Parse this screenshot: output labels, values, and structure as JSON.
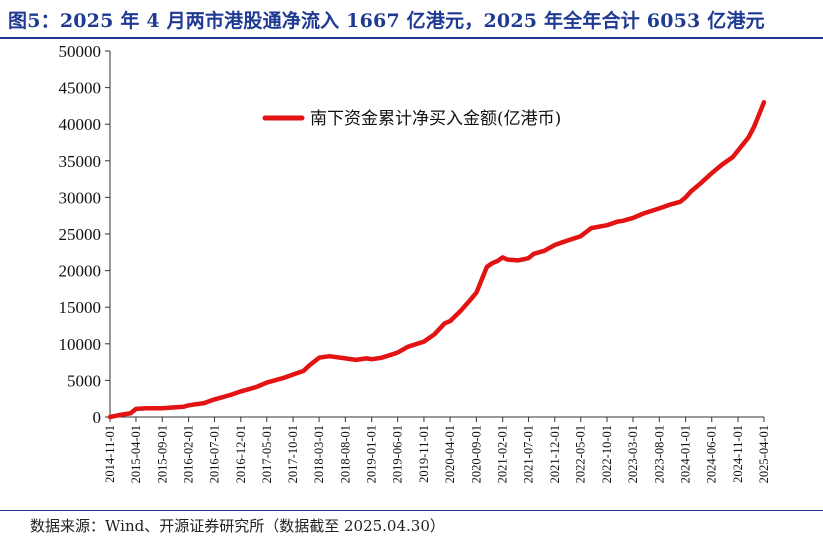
{
  "title": "图5：2025 年 4 月两市港股通净流入 1667 亿港元，2025 年全年合计 6053 亿港元",
  "source": "数据来源：Wind、开源证券研究所（数据截至 2025.04.30）",
  "colors": {
    "title": "#1f3a93",
    "line": "#e31313",
    "axis": "#333333"
  },
  "chart_data": {
    "type": "line",
    "title": "",
    "xlabel": "",
    "ylabel": "",
    "ylim": [
      0,
      50000
    ],
    "yticks": [
      0,
      5000,
      10000,
      15000,
      20000,
      25000,
      30000,
      35000,
      40000,
      45000,
      50000
    ],
    "xlim": [
      "2014-11-01",
      "2025-04-01"
    ],
    "xticks": [
      "2014-11-01",
      "2015-04-01",
      "2015-09-01",
      "2016-02-01",
      "2016-07-01",
      "2016-12-01",
      "2017-05-01",
      "2017-10-01",
      "2018-03-01",
      "2018-08-01",
      "2019-01-01",
      "2019-06-01",
      "2019-11-01",
      "2020-04-01",
      "2020-09-01",
      "2021-02-01",
      "2021-07-01",
      "2021-12-01",
      "2022-05-01",
      "2022-10-01",
      "2023-03-01",
      "2023-08-01",
      "2024-01-01",
      "2024-06-01",
      "2024-11-01",
      "2025-04-01"
    ],
    "grid": false,
    "legend": "top-center",
    "series": [
      {
        "name": "南下资金累计净买入金额(亿港币)",
        "x": [
          "2014-11-01",
          "2015-01-01",
          "2015-03-01",
          "2015-04-01",
          "2015-06-01",
          "2015-09-01",
          "2016-01-01",
          "2016-02-01",
          "2016-05-01",
          "2016-07-01",
          "2016-10-01",
          "2016-12-01",
          "2017-03-01",
          "2017-05-01",
          "2017-08-01",
          "2017-10-01",
          "2017-12-01",
          "2018-01-01",
          "2018-03-01",
          "2018-05-01",
          "2018-08-01",
          "2018-10-01",
          "2018-12-01",
          "2019-01-01",
          "2019-03-01",
          "2019-06-01",
          "2019-08-01",
          "2019-11-01",
          "2020-01-01",
          "2020-03-01",
          "2020-04-01",
          "2020-06-01",
          "2020-08-01",
          "2020-09-01",
          "2020-11-01",
          "2020-12-01",
          "2021-01-01",
          "2021-02-01",
          "2021-03-01",
          "2021-05-01",
          "2021-07-01",
          "2021-08-01",
          "2021-10-01",
          "2021-12-01",
          "2022-02-01",
          "2022-05-01",
          "2022-07-01",
          "2022-10-01",
          "2022-12-01",
          "2023-01-01",
          "2023-03-01",
          "2023-05-01",
          "2023-08-01",
          "2023-10-01",
          "2023-12-01",
          "2024-01-01",
          "2024-02-01",
          "2024-04-01",
          "2024-06-01",
          "2024-08-01",
          "2024-10-01",
          "2024-11-01",
          "2025-01-01",
          "2025-02-01",
          "2025-03-01",
          "2025-04-01"
        ],
        "values": [
          0,
          300,
          500,
          1100,
          1200,
          1200,
          1400,
          1600,
          1900,
          2400,
          3000,
          3500,
          4100,
          4700,
          5300,
          5800,
          6300,
          7000,
          8100,
          8300,
          8000,
          7800,
          8000,
          7900,
          8100,
          8800,
          9600,
          10300,
          11300,
          12800,
          13100,
          14500,
          16100,
          17000,
          20500,
          21000,
          21300,
          21800,
          21500,
          21400,
          21700,
          22300,
          22700,
          23500,
          24000,
          24700,
          25800,
          26200,
          26700,
          26800,
          27200,
          27800,
          28500,
          29000,
          29400,
          30000,
          30800,
          32000,
          33300,
          34500,
          35500,
          36400,
          38200,
          39600,
          41200,
          43000
        ]
      }
    ]
  }
}
